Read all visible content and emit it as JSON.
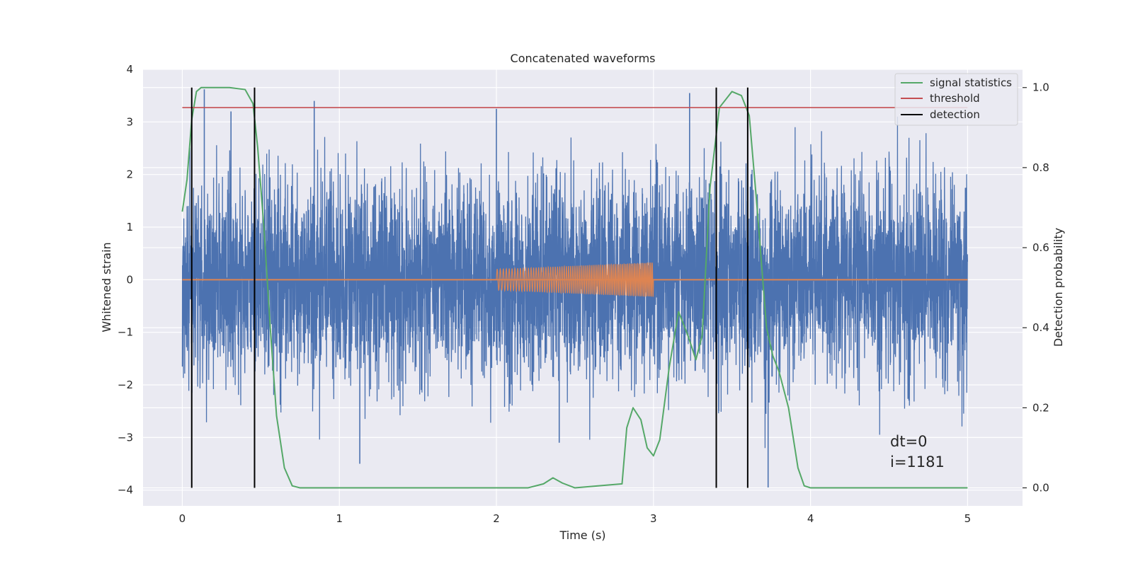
{
  "chart_data": {
    "type": "line",
    "title": "Concatenated waveforms",
    "xlabel": "Time (s)",
    "ylabel": "Whitened strain",
    "y2label": "Detection probability",
    "xlim": [
      -0.25,
      5.35
    ],
    "ylim": [
      -4.3,
      4.0
    ],
    "y2lim": [
      -0.045,
      1.0455
    ],
    "xticks": [
      0,
      1,
      2,
      3,
      4,
      5
    ],
    "yticks": [
      -4,
      -3,
      -2,
      -1,
      0,
      1,
      2,
      3,
      4
    ],
    "y2ticks": [
      0.0,
      0.2,
      0.4,
      0.6,
      0.8,
      1.0
    ],
    "xtick_labels": [
      "0",
      "1",
      "2",
      "3",
      "4",
      "5"
    ],
    "ytick_labels": [
      "−4",
      "−3",
      "−2",
      "−1",
      "0",
      "1",
      "2",
      "3",
      "4"
    ],
    "y2tick_labels": [
      "0.0",
      "0.2",
      "0.4",
      "0.6",
      "0.8",
      "1.0"
    ],
    "grid": true,
    "legend_position": "top-right",
    "background_color": "#EAEAF2",
    "series": [
      {
        "kind": "noise",
        "color": "#4C72B0",
        "x_range": [
          0,
          5
        ],
        "amplitude_envelope": 3.6,
        "outliers": [
          {
            "x": 0.14,
            "y": 3.62
          },
          {
            "x": 0.31,
            "y": 3.2
          },
          {
            "x": 0.84,
            "y": 3.4
          },
          {
            "x": 2.0,
            "y": 3.25
          },
          {
            "x": 3.23,
            "y": 3.55
          },
          {
            "x": 1.13,
            "y": -3.5
          },
          {
            "x": 3.73,
            "y": -3.95
          },
          {
            "x": 2.4,
            "y": -3.1
          }
        ]
      },
      {
        "kind": "chirp",
        "color": "#DD8452",
        "x_range": [
          2.0,
          3.0
        ],
        "amplitude_start": 0.2,
        "amplitude_end": 0.33,
        "baseline": 0,
        "baseline_x_range": [
          0,
          5
        ]
      },
      {
        "name": "signal statistics",
        "color": "#55A868",
        "axis": "y2",
        "x": [
          0.0,
          0.03,
          0.06,
          0.09,
          0.12,
          0.15,
          0.3,
          0.4,
          0.45,
          0.48,
          0.52,
          0.56,
          0.6,
          0.65,
          0.7,
          0.75,
          2.2,
          2.3,
          2.36,
          2.42,
          2.5,
          2.8,
          2.83,
          2.87,
          2.92,
          2.96,
          3.0,
          3.04,
          3.1,
          3.16,
          3.22,
          3.27,
          3.31,
          3.36,
          3.42,
          3.5,
          3.56,
          3.61,
          3.66,
          3.72,
          3.76,
          3.8,
          3.86,
          3.92,
          3.96,
          4.0,
          5.0
        ],
        "y": [
          0.69,
          0.77,
          0.92,
          0.99,
          1.0,
          1.0,
          1.0,
          0.995,
          0.96,
          0.85,
          0.65,
          0.4,
          0.18,
          0.05,
          0.005,
          0.0,
          0.0,
          0.01,
          0.025,
          0.012,
          0.0,
          0.01,
          0.15,
          0.2,
          0.17,
          0.1,
          0.08,
          0.12,
          0.3,
          0.44,
          0.38,
          0.32,
          0.38,
          0.75,
          0.95,
          0.99,
          0.98,
          0.93,
          0.7,
          0.4,
          0.33,
          0.29,
          0.2,
          0.05,
          0.005,
          0.0,
          0.0
        ]
      },
      {
        "name": "threshold",
        "color": "#C44E52",
        "axis": "y2",
        "x": [
          0,
          5
        ],
        "y": [
          0.95,
          0.95
        ]
      },
      {
        "name": "detection",
        "color": "#000000",
        "axis": "y2",
        "kind": "vlines",
        "x": [
          0.06,
          0.46,
          3.4,
          3.6
        ],
        "y_range": [
          0.0,
          1.0
        ]
      }
    ],
    "legend": [
      {
        "label": "signal statistics",
        "color": "#55A868"
      },
      {
        "label": "threshold",
        "color": "#C44E52"
      },
      {
        "label": "detection",
        "color": "#000000"
      }
    ],
    "annotations": [
      {
        "text": "dt=0",
        "x": 4.5,
        "y2": 0.11
      },
      {
        "text": "i=1181",
        "x": 4.5,
        "y2": 0.065
      }
    ]
  }
}
